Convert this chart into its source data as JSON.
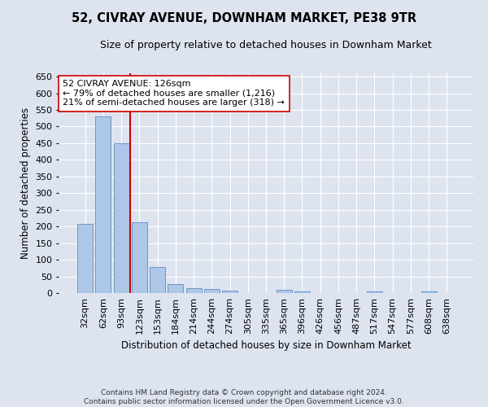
{
  "title": "52, CIVRAY AVENUE, DOWNHAM MARKET, PE38 9TR",
  "subtitle": "Size of property relative to detached houses in Downham Market",
  "xlabel": "Distribution of detached houses by size in Downham Market",
  "ylabel": "Number of detached properties",
  "footer_line1": "Contains HM Land Registry data © Crown copyright and database right 2024.",
  "footer_line2": "Contains public sector information licensed under the Open Government Licence v3.0.",
  "categories": [
    "32sqm",
    "62sqm",
    "93sqm",
    "123sqm",
    "153sqm",
    "184sqm",
    "214sqm",
    "244sqm",
    "274sqm",
    "305sqm",
    "335sqm",
    "365sqm",
    "396sqm",
    "426sqm",
    "456sqm",
    "487sqm",
    "517sqm",
    "547sqm",
    "577sqm",
    "608sqm",
    "638sqm"
  ],
  "values": [
    208,
    530,
    450,
    212,
    78,
    27,
    15,
    12,
    7,
    0,
    0,
    9,
    6,
    0,
    0,
    0,
    6,
    0,
    0,
    6,
    0
  ],
  "bar_color": "#aec6e8",
  "bar_edge_color": "#5a8fc2",
  "highlight_color": "#cc0000",
  "highlight_index": 3,
  "annotation_text": "52 CIVRAY AVENUE: 126sqm\n← 79% of detached houses are smaller (1,216)\n21% of semi-detached houses are larger (318) →",
  "annotation_box_color": "#ffffff",
  "annotation_box_edge": "#cc0000",
  "ylim": [
    0,
    660
  ],
  "yticks": [
    0,
    50,
    100,
    150,
    200,
    250,
    300,
    350,
    400,
    450,
    500,
    550,
    600,
    650
  ],
  "bg_color": "#dde4f0",
  "plot_bg_color": "#dde4f0",
  "grid_color": "#ffffff"
}
